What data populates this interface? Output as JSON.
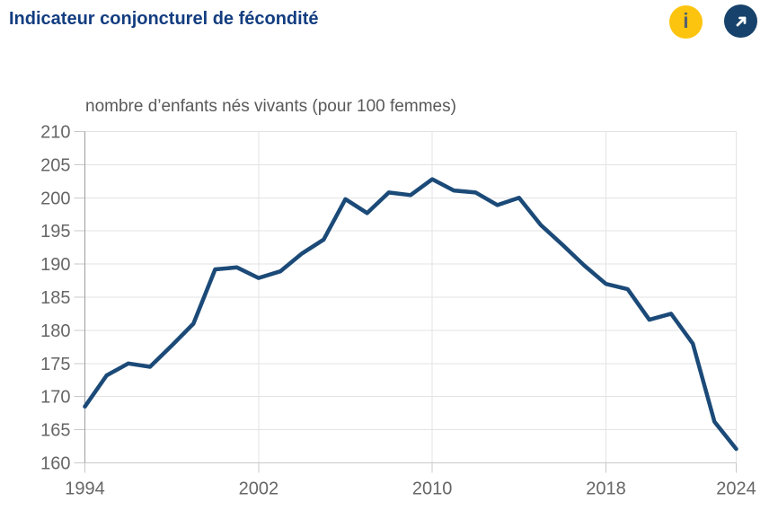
{
  "header": {
    "title": "Indicateur conjoncturel de fécondité",
    "info_icon_glyph": "i",
    "external_icon": "arrow-up-right"
  },
  "colors": {
    "title": "#133d80",
    "line": "#1b4a78",
    "info_yellow": "#fcc40f",
    "info_glyph": "#53616f",
    "link_navy": "#17426b",
    "axis_text": "#666666",
    "subtitle_text": "#595959",
    "gridline": "#e3e3e3",
    "tick": "#c9c9c9",
    "y_axis_line": "#9e9e9e"
  },
  "chart_data": {
    "type": "line",
    "title": "Indicateur conjoncturel de fécondité",
    "subtitle": "nombre d’enfants nés vivants (pour 100 femmes)",
    "x": [
      1994,
      1995,
      1996,
      1997,
      1998,
      1999,
      2000,
      2001,
      2002,
      2003,
      2004,
      2005,
      2006,
      2007,
      2008,
      2009,
      2010,
      2011,
      2012,
      2013,
      2014,
      2015,
      2016,
      2017,
      2018,
      2019,
      2020,
      2021,
      2022,
      2023,
      2024
    ],
    "series": [
      {
        "name": "Indicateur conjoncturel de fécondité",
        "values": [
          168.5,
          173.2,
          175.0,
          174.5,
          177.7,
          181.0,
          189.2,
          189.5,
          187.9,
          188.9,
          191.6,
          193.7,
          199.8,
          197.7,
          200.8,
          200.4,
          202.8,
          201.1,
          200.8,
          198.9,
          200.0,
          195.9,
          192.9,
          189.8,
          187.0,
          186.2,
          181.6,
          182.5,
          178.0,
          166.2,
          162.1
        ]
      }
    ],
    "xlim": [
      1994,
      2024
    ],
    "ylim": [
      160,
      210
    ],
    "xticks": [
      1994,
      2002,
      2010,
      2018,
      2024
    ],
    "yticks": [
      160,
      165,
      170,
      175,
      180,
      185,
      190,
      195,
      200,
      205,
      210
    ],
    "grid": true,
    "legend": false,
    "line_color": "#1b4a78"
  }
}
